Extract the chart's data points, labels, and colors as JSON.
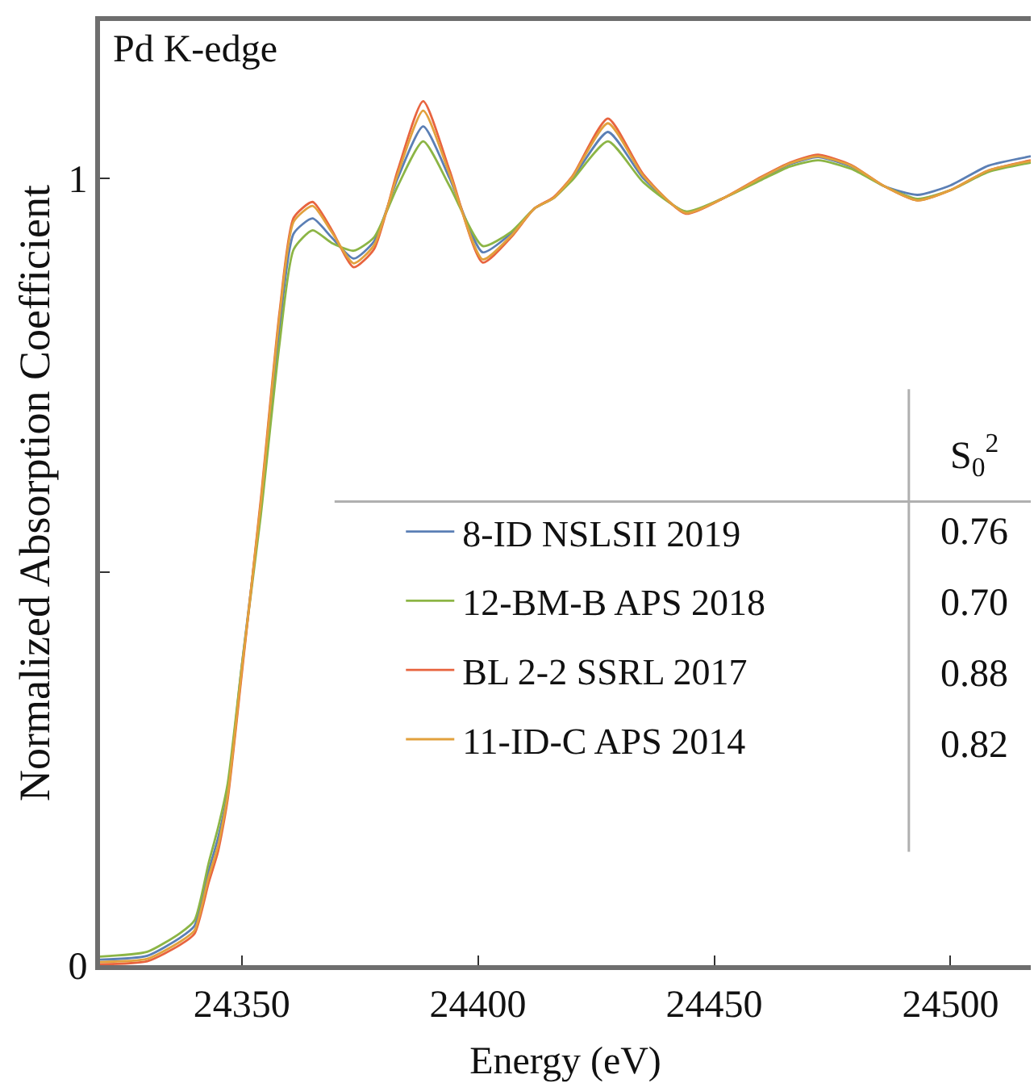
{
  "chart_data": {
    "type": "line",
    "xlabel": "Energy (eV)",
    "ylabel": "Normalized Absorption Coefficient",
    "x": [
      24320,
      24330,
      24337,
      24340,
      24343,
      24345,
      24347,
      24350,
      24354,
      24358,
      24361,
      24365,
      24369,
      24373.7,
      24378,
      24383,
      24388.4,
      24394,
      24401,
      24407,
      24412,
      24416,
      24420,
      24427.5,
      24435,
      24444,
      24452,
      24460,
      24466,
      24472,
      24479,
      24486,
      24493,
      24500,
      24508,
      24517
    ],
    "series": [
      {
        "name": "8-ID NSLSII 2019",
        "color": "#5b7fb5",
        "values": [
          0.007,
          0.012,
          0.035,
          0.05,
          0.12,
          0.162,
          0.22,
          0.38,
          0.58,
          0.81,
          0.93,
          0.949,
          0.925,
          0.898,
          0.92,
          1.0,
          1.066,
          1.0,
          0.906,
          0.93,
          0.962,
          0.975,
          1.0,
          1.059,
          1.0,
          0.957,
          0.975,
          1.0,
          1.018,
          1.027,
          1.015,
          0.99,
          0.979,
          0.991,
          1.016,
          1.028
        ]
      },
      {
        "name": "12-BM-B APS 2018",
        "color": "#8cb545",
        "values": [
          0.011,
          0.017,
          0.041,
          0.057,
          0.13,
          0.175,
          0.23,
          0.38,
          0.57,
          0.79,
          0.91,
          0.934,
          0.918,
          0.908,
          0.925,
          0.99,
          1.047,
          0.99,
          0.914,
          0.932,
          0.962,
          0.975,
          0.998,
          1.047,
          0.995,
          0.958,
          0.975,
          0.998,
          1.015,
          1.023,
          1.012,
          0.99,
          0.974,
          0.985,
          1.008,
          1.02
        ]
      },
      {
        "name": "BL 2-2 SSRL 2017",
        "color": "#e8643f",
        "values": [
          0.001,
          0.005,
          0.026,
          0.04,
          0.105,
          0.145,
          0.21,
          0.37,
          0.59,
          0.83,
          0.95,
          0.97,
          0.935,
          0.887,
          0.91,
          1.01,
          1.098,
          1.01,
          0.893,
          0.925,
          0.962,
          0.976,
          1.003,
          1.076,
          1.005,
          0.955,
          0.975,
          1.002,
          1.02,
          1.03,
          1.017,
          0.99,
          0.972,
          0.985,
          1.01,
          1.023
        ]
      },
      {
        "name": "11-ID-C APS 2014",
        "color": "#e2a13d",
        "values": [
          0.004,
          0.008,
          0.03,
          0.044,
          0.112,
          0.152,
          0.215,
          0.375,
          0.585,
          0.825,
          0.945,
          0.965,
          0.932,
          0.892,
          0.915,
          1.005,
          1.086,
          1.005,
          0.897,
          0.927,
          0.962,
          0.975,
          1.002,
          1.07,
          1.003,
          0.956,
          0.975,
          1.001,
          1.019,
          1.028,
          1.016,
          0.99,
          0.972,
          0.985,
          1.01,
          1.022
        ]
      }
    ],
    "annotations": [
      "Pd K-edge",
      "S$_{0}$$^{2}$",
      "0.76",
      "0.70",
      "0.88",
      "0.82"
    ],
    "xlim": [
      24320,
      24517
    ],
    "xticks": [
      24350,
      24400,
      24450,
      24500
    ],
    "ylim": [
      0,
      1.2
    ],
    "yticks": [
      0,
      {
        "value": 0.5,
        "label": null
      },
      1
    ],
    "legend": "right",
    "marker": "none",
    "line_style": "solid"
  }
}
